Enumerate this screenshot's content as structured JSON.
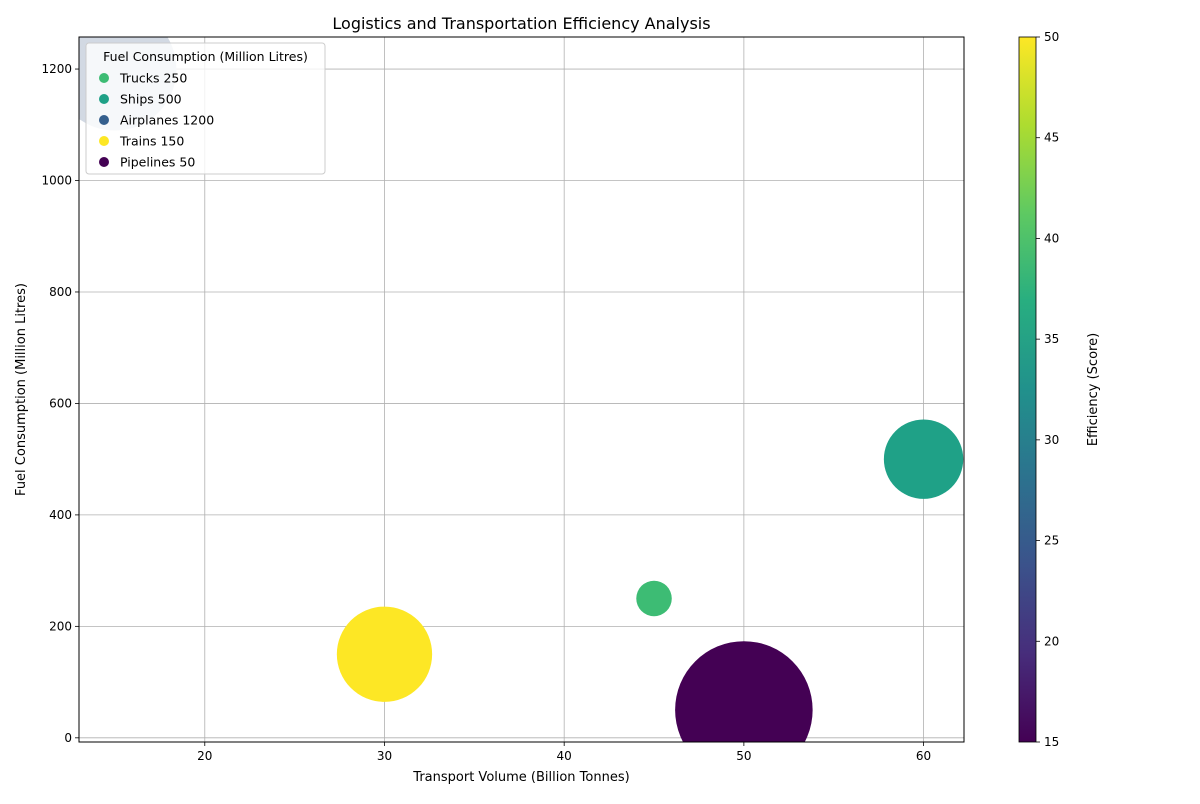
{
  "chart_data": {
    "type": "scatter",
    "title": "Logistics and Transportation Efficiency Analysis",
    "xlabel": "Transport Volume (Billion Tonnes)",
    "ylabel": "Fuel Consumption (Million Litres)",
    "xlim": [
      13,
      62.25
    ],
    "ylim": [
      -7.5,
      1257.5
    ],
    "xticks": [
      20,
      30,
      40,
      50,
      60
    ],
    "yticks": [
      0,
      200,
      400,
      600,
      800,
      1000,
      1200
    ],
    "grid": true,
    "legend": {
      "title": "Fuel Consumption (Million Litres)",
      "placement": "top-left"
    },
    "colorbar": {
      "label": "Efficiency (Score)",
      "colormap": "viridis",
      "range": [
        15,
        50
      ],
      "ticks": [
        15,
        20,
        25,
        30,
        35,
        40,
        45,
        50
      ]
    },
    "points": [
      {
        "mode": "Trucks",
        "x": 45,
        "y": 250,
        "efficiency": 40,
        "size": 1,
        "legend_label": "Trucks 250",
        "color": "#3dbc74"
      },
      {
        "mode": "Ships",
        "x": 60,
        "y": 500,
        "efficiency": 35,
        "size": 5,
        "legend_label": "Ships 500",
        "color": "#1fa187"
      },
      {
        "mode": "Airplanes",
        "x": 15,
        "y": 1200,
        "efficiency": 25,
        "size": 12,
        "legend_label": "Airplanes 1200",
        "color": "#355f8d",
        "face_color": "#d2d9e3"
      },
      {
        "mode": "Trains",
        "x": 30,
        "y": 150,
        "efficiency": 50,
        "size": 7.2,
        "legend_label": "Trains 150",
        "color": "#fde725"
      },
      {
        "mode": "Pipelines",
        "x": 50,
        "y": 50,
        "efficiency": 15,
        "size": 15,
        "legend_label": "Pipelines 50",
        "color": "#440154"
      }
    ]
  }
}
